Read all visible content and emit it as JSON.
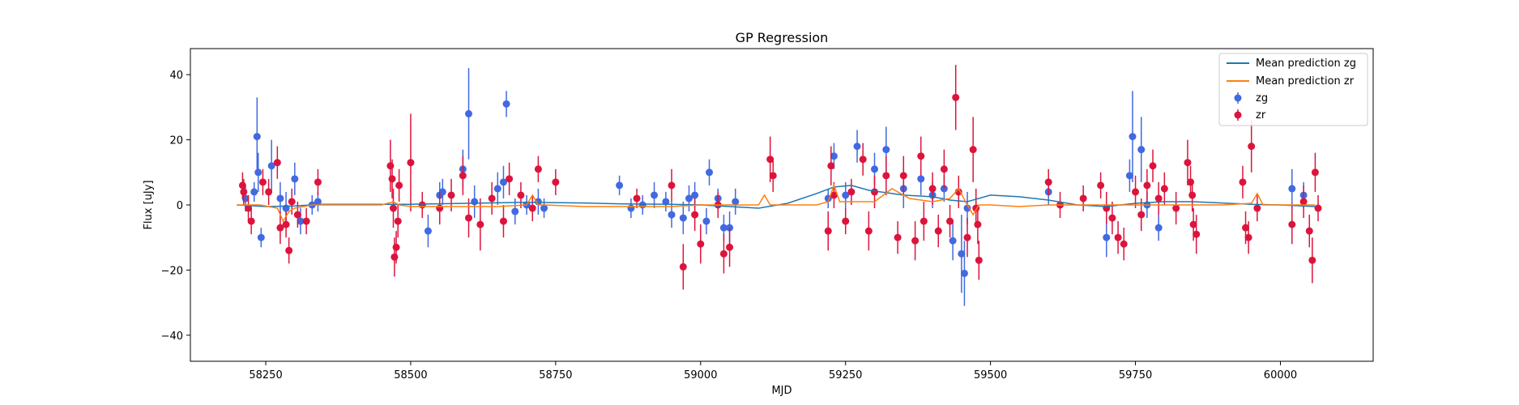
{
  "chart_data": {
    "type": "scatter",
    "title": "GP Regression",
    "xlabel": "MJD",
    "ylabel": "Flux [uJy]",
    "xlim": [
      58120,
      60160
    ],
    "ylim": [
      -48,
      48
    ],
    "xticks": [
      58250,
      58500,
      58750,
      59000,
      59250,
      59500,
      59750,
      60000
    ],
    "yticks": [
      -40,
      -20,
      0,
      20,
      40
    ],
    "grid": false,
    "legend": {
      "position": "top-right"
    },
    "colors": {
      "zg": "#4169e1",
      "zr": "#dc143c",
      "mean_zg": "#1f77b4",
      "mean_zr": "#ff7f0e"
    },
    "lines": [
      {
        "name": "Mean prediction zg",
        "color": "#1f77b4",
        "x": [
          58200,
          58250,
          58300,
          58350,
          58450,
          58500,
          58600,
          58700,
          58800,
          58870,
          58950,
          59000,
          59050,
          59100,
          59150,
          59200,
          59230,
          59260,
          59290,
          59350,
          59400,
          59430,
          59460,
          59500,
          59550,
          59600,
          59650,
          59700,
          59750,
          59800,
          59850,
          59900,
          59950,
          60000,
          60060
        ],
        "y": [
          0.0,
          -0.5,
          -0.3,
          0.2,
          0.2,
          0.2,
          0.5,
          0.8,
          0.6,
          0.3,
          0.2,
          0.0,
          -0.5,
          -1.0,
          0.5,
          3.5,
          5.5,
          6.0,
          4.5,
          3.0,
          2.5,
          1.5,
          1.0,
          3.0,
          2.5,
          1.5,
          0.0,
          -0.5,
          0.5,
          1.0,
          1.0,
          0.6,
          0.2,
          0.0,
          -0.5
        ]
      },
      {
        "name": "Mean prediction zr",
        "color": "#ff7f0e",
        "x": [
          58200,
          58240,
          58270,
          58280,
          58290,
          58300,
          58330,
          58450,
          58470,
          58480,
          58500,
          58550,
          58600,
          58650,
          58700,
          58710,
          58720,
          58730,
          58800,
          58880,
          58950,
          59000,
          59050,
          59100,
          59110,
          59120,
          59200,
          59220,
          59230,
          59240,
          59300,
          59330,
          59360,
          59400,
          59430,
          59445,
          59460,
          59470,
          59480,
          59500,
          59550,
          59600,
          59650,
          59700,
          59800,
          59900,
          59950,
          59960,
          59970,
          60000,
          60060
        ],
        "y": [
          0.0,
          0.0,
          -1.0,
          -5.0,
          -2.0,
          -1.0,
          0.0,
          0.0,
          1.0,
          0.0,
          -0.5,
          -0.5,
          -0.5,
          -0.5,
          0.0,
          3.0,
          0.0,
          0.0,
          -0.5,
          -0.5,
          -0.5,
          0.0,
          0.0,
          0.0,
          3.0,
          0.0,
          0.0,
          1.0,
          6.0,
          1.0,
          1.0,
          5.0,
          2.0,
          1.0,
          2.0,
          5.0,
          0.0,
          -3.0,
          0.0,
          0.0,
          -0.5,
          0.0,
          0.0,
          0.0,
          0.0,
          0.0,
          0.5,
          3.5,
          0.0,
          0.0,
          0.0
        ]
      }
    ],
    "series": [
      {
        "name": "zg",
        "color": "#4169e1",
        "points": [
          [
            58215,
            2,
            4
          ],
          [
            58230,
            4,
            3
          ],
          [
            58235,
            21,
            12
          ],
          [
            58237,
            10,
            6
          ],
          [
            58242,
            -10,
            3
          ],
          [
            58260,
            12,
            8
          ],
          [
            58275,
            2,
            5
          ],
          [
            58285,
            -1,
            5
          ],
          [
            58300,
            8,
            5
          ],
          [
            58310,
            -5,
            4
          ],
          [
            58330,
            0,
            3
          ],
          [
            58340,
            1,
            3
          ],
          [
            58530,
            -8,
            5
          ],
          [
            58550,
            3,
            4
          ],
          [
            58555,
            4,
            4
          ],
          [
            58590,
            11,
            6
          ],
          [
            58600,
            28,
            14
          ],
          [
            58610,
            1,
            5
          ],
          [
            58650,
            5,
            5
          ],
          [
            58660,
            7,
            5
          ],
          [
            58665,
            31,
            4
          ],
          [
            58680,
            -2,
            4
          ],
          [
            58700,
            0,
            3
          ],
          [
            58720,
            1,
            4
          ],
          [
            58730,
            -1,
            3
          ],
          [
            58860,
            6,
            3
          ],
          [
            58880,
            -1,
            3
          ],
          [
            58900,
            0,
            3
          ],
          [
            58920,
            3,
            4
          ],
          [
            58940,
            1,
            3
          ],
          [
            58950,
            -3,
            4
          ],
          [
            58970,
            -4,
            5
          ],
          [
            58980,
            2,
            4
          ],
          [
            58990,
            3,
            4
          ],
          [
            59010,
            -5,
            4
          ],
          [
            59015,
            10,
            4
          ],
          [
            59030,
            2,
            3
          ],
          [
            59040,
            -7,
            4
          ],
          [
            59050,
            -7,
            5
          ],
          [
            59060,
            1,
            4
          ],
          [
            59220,
            2,
            3
          ],
          [
            59230,
            15,
            4
          ],
          [
            59250,
            3,
            4
          ],
          [
            59270,
            18,
            5
          ],
          [
            59300,
            11,
            5
          ],
          [
            59320,
            17,
            7
          ],
          [
            59350,
            5,
            6
          ],
          [
            59380,
            8,
            5
          ],
          [
            59400,
            3,
            4
          ],
          [
            59420,
            5,
            4
          ],
          [
            59435,
            -11,
            6
          ],
          [
            59450,
            -15,
            12
          ],
          [
            59455,
            -21,
            10
          ],
          [
            59460,
            -1,
            5
          ],
          [
            59600,
            4,
            4
          ],
          [
            59700,
            -10,
            6
          ],
          [
            59740,
            9,
            5
          ],
          [
            59745,
            21,
            14
          ],
          [
            59760,
            17,
            10
          ],
          [
            59770,
            0,
            4
          ],
          [
            59790,
            -7,
            4
          ],
          [
            60020,
            5,
            6
          ],
          [
            60040,
            3,
            4
          ]
        ]
      },
      {
        "name": "zr",
        "color": "#dc143c",
        "points": [
          [
            58210,
            6,
            4
          ],
          [
            58212,
            4,
            4
          ],
          [
            58220,
            -1,
            4
          ],
          [
            58225,
            -5,
            4
          ],
          [
            58245,
            7,
            4
          ],
          [
            58255,
            4,
            4
          ],
          [
            58270,
            13,
            5
          ],
          [
            58275,
            -7,
            5
          ],
          [
            58285,
            -6,
            4
          ],
          [
            58290,
            -14,
            4
          ],
          [
            58295,
            1,
            4
          ],
          [
            58305,
            -3,
            4
          ],
          [
            58320,
            -5,
            4
          ],
          [
            58340,
            7,
            4
          ],
          [
            58465,
            12,
            8
          ],
          [
            58468,
            8,
            6
          ],
          [
            58470,
            -1,
            6
          ],
          [
            58472,
            -16,
            6
          ],
          [
            58475,
            -13,
            5
          ],
          [
            58478,
            -5,
            5
          ],
          [
            58480,
            6,
            5
          ],
          [
            58500,
            13,
            15
          ],
          [
            58520,
            0,
            4
          ],
          [
            58550,
            -1,
            5
          ],
          [
            58570,
            3,
            5
          ],
          [
            58590,
            9,
            6
          ],
          [
            58600,
            -4,
            6
          ],
          [
            58620,
            -6,
            8
          ],
          [
            58640,
            2,
            5
          ],
          [
            58660,
            -5,
            5
          ],
          [
            58670,
            8,
            5
          ],
          [
            58690,
            3,
            4
          ],
          [
            58710,
            -1,
            4
          ],
          [
            58720,
            11,
            4
          ],
          [
            58750,
            7,
            4
          ],
          [
            58890,
            2,
            3
          ],
          [
            58950,
            6,
            5
          ],
          [
            58970,
            -19,
            7
          ],
          [
            58990,
            -3,
            5
          ],
          [
            59000,
            -12,
            6
          ],
          [
            59030,
            0,
            4
          ],
          [
            59040,
            -15,
            6
          ],
          [
            59050,
            -13,
            6
          ],
          [
            59120,
            14,
            7
          ],
          [
            59125,
            9,
            5
          ],
          [
            59220,
            -8,
            6
          ],
          [
            59225,
            12,
            6
          ],
          [
            59230,
            3,
            4
          ],
          [
            59250,
            -5,
            4
          ],
          [
            59260,
            4,
            4
          ],
          [
            59280,
            14,
            5
          ],
          [
            59290,
            -8,
            6
          ],
          [
            59300,
            4,
            5
          ],
          [
            59320,
            9,
            6
          ],
          [
            59340,
            -10,
            5
          ],
          [
            59350,
            9,
            6
          ],
          [
            59370,
            -11,
            6
          ],
          [
            59380,
            15,
            6
          ],
          [
            59385,
            -5,
            6
          ],
          [
            59400,
            5,
            5
          ],
          [
            59410,
            -8,
            5
          ],
          [
            59420,
            11,
            6
          ],
          [
            59430,
            -5,
            5
          ],
          [
            59440,
            33,
            10
          ],
          [
            59445,
            4,
            5
          ],
          [
            59460,
            -10,
            6
          ],
          [
            59470,
            17,
            10
          ],
          [
            59475,
            -1,
            6
          ],
          [
            59478,
            -6,
            6
          ],
          [
            59480,
            -17,
            6
          ],
          [
            59600,
            7,
            4
          ],
          [
            59620,
            0,
            4
          ],
          [
            59660,
            2,
            4
          ],
          [
            59690,
            6,
            4
          ],
          [
            59700,
            -1,
            5
          ],
          [
            59710,
            -4,
            5
          ],
          [
            59720,
            -10,
            5
          ],
          [
            59730,
            -12,
            5
          ],
          [
            59750,
            4,
            5
          ],
          [
            59760,
            -3,
            5
          ],
          [
            59770,
            6,
            5
          ],
          [
            59780,
            12,
            5
          ],
          [
            59790,
            2,
            5
          ],
          [
            59800,
            5,
            5
          ],
          [
            59820,
            -1,
            5
          ],
          [
            59840,
            13,
            7
          ],
          [
            59845,
            7,
            5
          ],
          [
            59848,
            3,
            5
          ],
          [
            59850,
            -6,
            5
          ],
          [
            59855,
            -9,
            6
          ],
          [
            59935,
            7,
            5
          ],
          [
            59940,
            -7,
            5
          ],
          [
            59945,
            -10,
            5
          ],
          [
            59950,
            18,
            8
          ],
          [
            59960,
            -1,
            4
          ],
          [
            60020,
            -6,
            6
          ],
          [
            60040,
            1,
            5
          ],
          [
            60050,
            -8,
            5
          ],
          [
            60055,
            -17,
            7
          ],
          [
            60060,
            10,
            6
          ],
          [
            60065,
            -1,
            4
          ]
        ]
      }
    ]
  }
}
